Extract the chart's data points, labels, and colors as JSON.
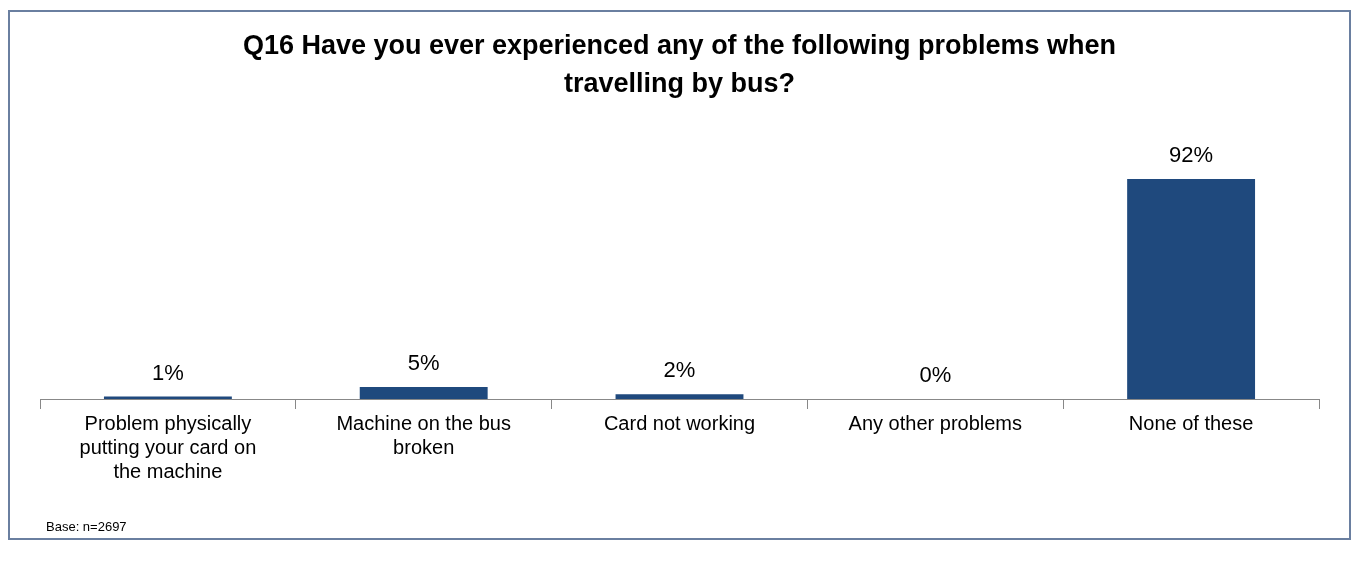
{
  "chart_data": {
    "type": "bar",
    "title": "Q16 Have you ever experienced any of the following problems when travelling by bus?",
    "categories": [
      "Problem physically putting your card on the machine",
      "Machine on the bus broken",
      "Card not working",
      "Any other problems",
      "None of these"
    ],
    "values": [
      1,
      5,
      2,
      0,
      92
    ],
    "value_labels": [
      "1%",
      "5%",
      "2%",
      "0%",
      "92%"
    ],
    "color": "#1f497d",
    "legend": false,
    "annotations": [
      "Base: n=2697"
    ]
  }
}
